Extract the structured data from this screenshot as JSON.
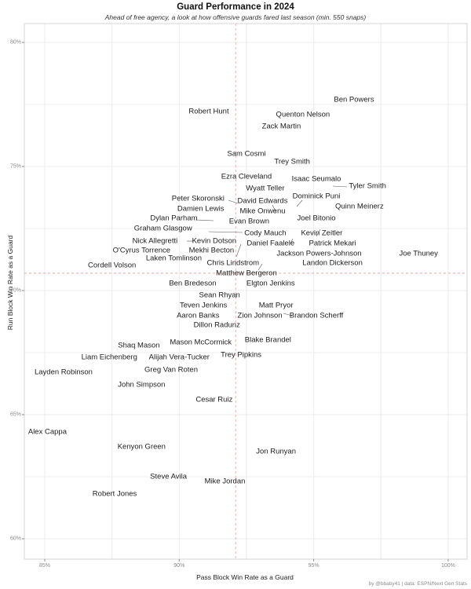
{
  "header": {
    "title": "Guard Performance in 2024",
    "subtitle": "Ahead of free agency, a look at how offensive guards fared last season (min. 550 snaps)"
  },
  "footer": {
    "credit": "by @bbaby41 | data: ESPN/Next Gen Stats"
  },
  "chart_data": {
    "type": "scatter",
    "title": "Guard Performance in 2024",
    "subtitle": "Ahead of free agency, a look at how offensive guards fared last season (min. 550 snaps)",
    "xlabel": "Pass Block Win Rate as a Guard",
    "ylabel": "Run Block Win Rate as a Guard",
    "xlim": [
      84.2,
      100.7
    ],
    "ylim": [
      59.2,
      80.8
    ],
    "x_ticks": [
      {
        "value": 85,
        "label": "85%"
      },
      {
        "value": 90,
        "label": "90%"
      },
      {
        "value": 95,
        "label": "95%"
      },
      {
        "value": 100,
        "label": "100%"
      }
    ],
    "y_ticks": [
      {
        "value": 60,
        "label": "60%"
      },
      {
        "value": 65,
        "label": "65%"
      },
      {
        "value": 70,
        "label": "70%"
      },
      {
        "value": 75,
        "label": "75%"
      },
      {
        "value": 80,
        "label": "80%"
      }
    ],
    "grid": {
      "on": true,
      "step": 2.5,
      "color": "#ececec"
    },
    "avg_lines": {
      "pass_block_avg": 92.1,
      "run_block_avg": 70.7,
      "style": "dashed",
      "color": "#f0a3a3"
    },
    "labels_only": true,
    "players": [
      {
        "name": "Ben Powers",
        "pass_block_win_rate": 96.5,
        "run_block_win_rate": 77.7
      },
      {
        "name": "Robert Hunt",
        "pass_block_win_rate": 91.1,
        "run_block_win_rate": 77.2
      },
      {
        "name": "Quenton Nelson",
        "pass_block_win_rate": 94.6,
        "run_block_win_rate": 77.1
      },
      {
        "name": "Zack Martin",
        "pass_block_win_rate": 93.8,
        "run_block_win_rate": 76.6
      },
      {
        "name": "Sam Cosmi",
        "pass_block_win_rate": 92.5,
        "run_block_win_rate": 75.5
      },
      {
        "name": "Trey Smith",
        "pass_block_win_rate": 94.2,
        "run_block_win_rate": 75.2
      },
      {
        "name": "Ezra Cleveland",
        "pass_block_win_rate": 92.5,
        "run_block_win_rate": 74.6
      },
      {
        "name": "Isaac Seumalo",
        "pass_block_win_rate": 95.1,
        "run_block_win_rate": 74.5
      },
      {
        "name": "Wyatt Teller",
        "pass_block_win_rate": 93.2,
        "run_block_win_rate": 74.1
      },
      {
        "name": "Tyler Smith",
        "pass_block_win_rate": 97.0,
        "run_block_win_rate": 74.2
      },
      {
        "name": "Peter Skoronski",
        "pass_block_win_rate": 90.7,
        "run_block_win_rate": 73.7
      },
      {
        "name": "David Edwards",
        "pass_block_win_rate": 93.1,
        "run_block_win_rate": 73.6
      },
      {
        "name": "Dominick Puni",
        "pass_block_win_rate": 95.1,
        "run_block_win_rate": 73.8
      },
      {
        "name": "Damien Lewis",
        "pass_block_win_rate": 90.8,
        "run_block_win_rate": 73.3
      },
      {
        "name": "Mike Onwenu",
        "pass_block_win_rate": 93.1,
        "run_block_win_rate": 73.2
      },
      {
        "name": "Quinn Meinerz",
        "pass_block_win_rate": 96.7,
        "run_block_win_rate": 73.4
      },
      {
        "name": "Dylan Parham",
        "pass_block_win_rate": 89.8,
        "run_block_win_rate": 72.9
      },
      {
        "name": "Evan Brown",
        "pass_block_win_rate": 92.6,
        "run_block_win_rate": 72.8
      },
      {
        "name": "Joel Bitonio",
        "pass_block_win_rate": 95.1,
        "run_block_win_rate": 72.9
      },
      {
        "name": "Graham Glasgow",
        "pass_block_win_rate": 89.4,
        "run_block_win_rate": 72.5
      },
      {
        "name": "Cody Mauch",
        "pass_block_win_rate": 93.2,
        "run_block_win_rate": 72.3
      },
      {
        "name": "Kevin Zeitler",
        "pass_block_win_rate": 95.3,
        "run_block_win_rate": 72.3
      },
      {
        "name": "Nick Allegretti",
        "pass_block_win_rate": 89.1,
        "run_block_win_rate": 72.0
      },
      {
        "name": "Kevin Dotson",
        "pass_block_win_rate": 91.3,
        "run_block_win_rate": 72.0
      },
      {
        "name": "Daniel Faalele",
        "pass_block_win_rate": 93.4,
        "run_block_win_rate": 71.9
      },
      {
        "name": "Patrick Mekari",
        "pass_block_win_rate": 95.7,
        "run_block_win_rate": 71.9
      },
      {
        "name": "O'Cyrus Torrence",
        "pass_block_win_rate": 88.6,
        "run_block_win_rate": 71.6
      },
      {
        "name": "Mekhi Becton",
        "pass_block_win_rate": 91.2,
        "run_block_win_rate": 71.6
      },
      {
        "name": "Jackson Powers-Johnson",
        "pass_block_win_rate": 95.2,
        "run_block_win_rate": 71.5
      },
      {
        "name": "Joe Thuney",
        "pass_block_win_rate": 98.9,
        "run_block_win_rate": 71.5
      },
      {
        "name": "Laken Tomlinson",
        "pass_block_win_rate": 89.8,
        "run_block_win_rate": 71.3
      },
      {
        "name": "Chris Lindstrom",
        "pass_block_win_rate": 92.0,
        "run_block_win_rate": 71.1
      },
      {
        "name": "Landon Dickerson",
        "pass_block_win_rate": 95.7,
        "run_block_win_rate": 71.1
      },
      {
        "name": "Cordell Volson",
        "pass_block_win_rate": 87.5,
        "run_block_win_rate": 71.0
      },
      {
        "name": "Matthew Bergeron",
        "pass_block_win_rate": 92.5,
        "run_block_win_rate": 70.7
      },
      {
        "name": "Ben Bredeson",
        "pass_block_win_rate": 90.5,
        "run_block_win_rate": 70.3
      },
      {
        "name": "Elgton Jenkins",
        "pass_block_win_rate": 93.4,
        "run_block_win_rate": 70.3
      },
      {
        "name": "Sean Rhyan",
        "pass_block_win_rate": 91.5,
        "run_block_win_rate": 69.8
      },
      {
        "name": "Teven Jenkins",
        "pass_block_win_rate": 90.9,
        "run_block_win_rate": 69.4
      },
      {
        "name": "Matt Pryor",
        "pass_block_win_rate": 93.6,
        "run_block_win_rate": 69.4
      },
      {
        "name": "Aaron Banks",
        "pass_block_win_rate": 90.7,
        "run_block_win_rate": 69.0
      },
      {
        "name": "Zion Johnson",
        "pass_block_win_rate": 93.0,
        "run_block_win_rate": 69.0
      },
      {
        "name": "Brandon Scherff",
        "pass_block_win_rate": 95.1,
        "run_block_win_rate": 69.0
      },
      {
        "name": "Dillon Radunz",
        "pass_block_win_rate": 91.4,
        "run_block_win_rate": 68.6
      },
      {
        "name": "Shaq Mason",
        "pass_block_win_rate": 88.5,
        "run_block_win_rate": 67.8
      },
      {
        "name": "Mason McCormick",
        "pass_block_win_rate": 90.8,
        "run_block_win_rate": 67.9
      },
      {
        "name": "Blake Brandel",
        "pass_block_win_rate": 93.3,
        "run_block_win_rate": 68.0
      },
      {
        "name": "Liam Eichenberg",
        "pass_block_win_rate": 87.4,
        "run_block_win_rate": 67.3
      },
      {
        "name": "Alijah Vera-Tucker",
        "pass_block_win_rate": 90.0,
        "run_block_win_rate": 67.3
      },
      {
        "name": "Trey Pipkins",
        "pass_block_win_rate": 92.3,
        "run_block_win_rate": 67.4
      },
      {
        "name": "Layden Robinson",
        "pass_block_win_rate": 85.7,
        "run_block_win_rate": 66.7
      },
      {
        "name": "Greg Van Roten",
        "pass_block_win_rate": 89.7,
        "run_block_win_rate": 66.8
      },
      {
        "name": "John Simpson",
        "pass_block_win_rate": 88.6,
        "run_block_win_rate": 66.2
      },
      {
        "name": "Cesar Ruiz",
        "pass_block_win_rate": 91.3,
        "run_block_win_rate": 65.6
      },
      {
        "name": "Alex Cappa",
        "pass_block_win_rate": 85.1,
        "run_block_win_rate": 64.3
      },
      {
        "name": "Kenyon Green",
        "pass_block_win_rate": 88.6,
        "run_block_win_rate": 63.7
      },
      {
        "name": "Jon Runyan",
        "pass_block_win_rate": 93.6,
        "run_block_win_rate": 63.5
      },
      {
        "name": "Steve Avila",
        "pass_block_win_rate": 89.6,
        "run_block_win_rate": 62.5
      },
      {
        "name": "Mike Jordan",
        "pass_block_win_rate": 91.7,
        "run_block_win_rate": 62.3
      },
      {
        "name": "Robert Jones",
        "pass_block_win_rate": 87.6,
        "run_block_win_rate": 61.8
      }
    ]
  }
}
